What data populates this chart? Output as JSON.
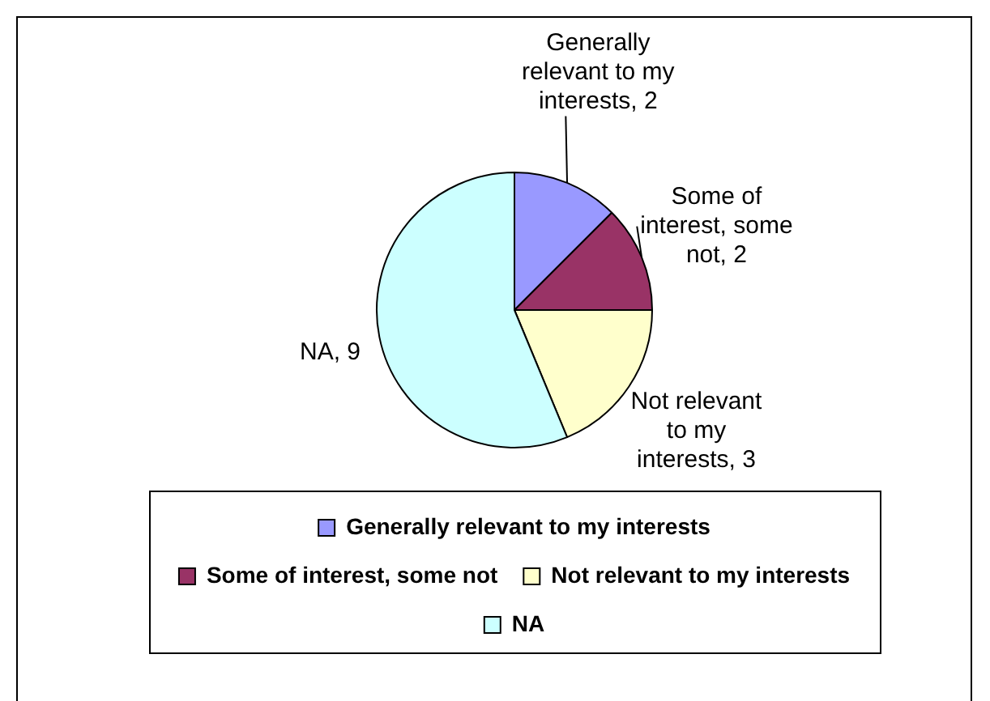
{
  "chart_data": {
    "type": "pie",
    "categories": [
      "Generally relevant to my interests",
      "Some of interest, some not",
      "Not relevant to my interests",
      "NA"
    ],
    "values": [
      2,
      2,
      3,
      9
    ],
    "colors": [
      "#9999ff",
      "#993366",
      "#ffffcc",
      "#ccffff"
    ],
    "value_labels": [
      "Generally relevant to my interests, 2",
      "Some of interest, some not, 2",
      "Not relevant to my interests, 3",
      "NA, 9"
    ],
    "legend": "bottom"
  }
}
